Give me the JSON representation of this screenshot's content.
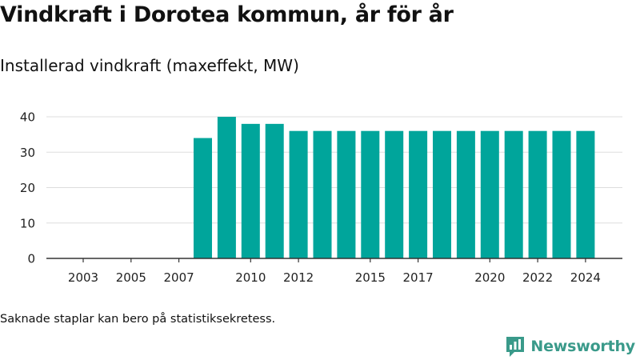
{
  "title": "Vindkraft i Dorotea kommun, år för år",
  "subtitle": "Installerad vindkraft (maxeffekt, MW)",
  "note": "Saknade staplar kan bero på statistiksekretess.",
  "logo": {
    "text": "Newsworthy",
    "icon": "newsworthy-bar-chat-icon"
  },
  "colors": {
    "bar": "#00a59b",
    "grid": "#dddddd",
    "axis": "#333333",
    "logo": "#3a9a8a"
  },
  "chart_data": {
    "type": "bar",
    "title": "Installerad vindkraft (maxeffekt, MW)",
    "xlabel": "",
    "ylabel": "",
    "categories": [
      2003,
      2004,
      2005,
      2006,
      2007,
      2008,
      2009,
      2010,
      2011,
      2012,
      2013,
      2014,
      2015,
      2016,
      2017,
      2018,
      2019,
      2020,
      2021,
      2022,
      2023,
      2024
    ],
    "values": [
      null,
      null,
      null,
      null,
      null,
      34,
      40,
      38,
      38,
      36,
      36,
      36,
      36,
      36,
      36,
      36,
      36,
      36,
      36,
      36,
      36,
      36
    ],
    "x_tick_labels": [
      "2003",
      "2005",
      "2007",
      "2010",
      "2012",
      "2015",
      "2017",
      "2020",
      "2022",
      "2024"
    ],
    "y_ticks": [
      0,
      10,
      20,
      30,
      40
    ],
    "ylim": [
      0,
      40
    ],
    "grid": "horizontal"
  }
}
